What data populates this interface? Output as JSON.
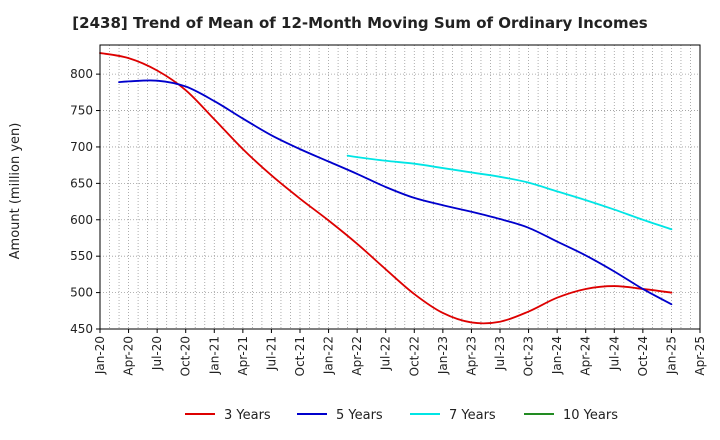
{
  "chart_data": {
    "type": "line",
    "title": "[2438]  Trend of Mean of 12-Month Moving Sum of Ordinary Incomes",
    "xlabel": "",
    "ylabel": "Amount (million yen)",
    "ylim": [
      450,
      840
    ],
    "yticks": [
      450,
      500,
      550,
      600,
      650,
      700,
      750,
      800
    ],
    "x_range": [
      "2020-01",
      "2025-04"
    ],
    "xtick_labels": [
      "Jan-20",
      "Apr-20",
      "Jul-20",
      "Oct-20",
      "Jan-21",
      "Apr-21",
      "Jul-21",
      "Oct-21",
      "Jan-22",
      "Apr-22",
      "Jul-22",
      "Oct-22",
      "Jan-23",
      "Apr-23",
      "Jul-23",
      "Oct-23",
      "Jan-24",
      "Apr-24",
      "Jul-24",
      "Oct-24",
      "Jan-25",
      "Apr-25"
    ],
    "grid": true,
    "legend_position": "bottom",
    "series": [
      {
        "name": "3 Years",
        "color": "#dd0000",
        "x": [
          "2020-01",
          "2020-04",
          "2020-07",
          "2020-10",
          "2021-01",
          "2021-04",
          "2021-07",
          "2021-10",
          "2022-01",
          "2022-04",
          "2022-07",
          "2022-10",
          "2023-01",
          "2023-04",
          "2023-07",
          "2023-10",
          "2024-01",
          "2024-04",
          "2024-07",
          "2024-10",
          "2025-01"
        ],
        "values": [
          829,
          822,
          805,
          778,
          738,
          697,
          661,
          629,
          599,
          567,
          532,
          498,
          472,
          459,
          460,
          474,
          493,
          505,
          509,
          505,
          500
        ]
      },
      {
        "name": "5 Years",
        "color": "#0000cc",
        "x": [
          "2020-03",
          "2020-04",
          "2020-07",
          "2020-10",
          "2021-01",
          "2021-04",
          "2021-07",
          "2021-10",
          "2022-01",
          "2022-04",
          "2022-07",
          "2022-10",
          "2023-01",
          "2023-04",
          "2023-07",
          "2023-10",
          "2024-01",
          "2024-04",
          "2024-07",
          "2024-10",
          "2025-01"
        ],
        "values": [
          789,
          790,
          791,
          783,
          763,
          739,
          716,
          697,
          680,
          663,
          645,
          630,
          620,
          611,
          601,
          589,
          570,
          551,
          529,
          505,
          484
        ]
      },
      {
        "name": "7 Years",
        "color": "#00e5e5",
        "x": [
          "2022-03",
          "2022-04",
          "2022-07",
          "2022-10",
          "2023-01",
          "2023-04",
          "2023-07",
          "2023-10",
          "2024-01",
          "2024-04",
          "2024-07",
          "2024-10",
          "2025-01"
        ],
        "values": [
          688,
          686,
          681,
          677,
          671,
          665,
          659,
          651,
          639,
          627,
          614,
          600,
          587
        ]
      },
      {
        "name": "10 Years",
        "color": "#228b22",
        "x": [],
        "values": []
      }
    ]
  }
}
